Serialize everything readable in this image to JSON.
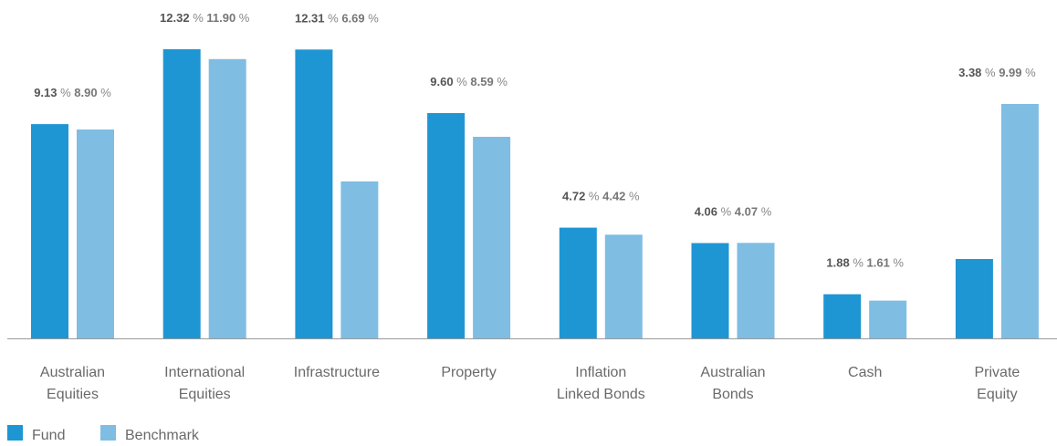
{
  "chart_data": {
    "type": "bar",
    "categories": [
      [
        "Australian",
        "Equities"
      ],
      [
        "International",
        "Equities"
      ],
      [
        "Infrastructure"
      ],
      [
        "Property"
      ],
      [
        "Inflation",
        "Linked Bonds"
      ],
      [
        "Australian",
        "Bonds"
      ],
      [
        "Cash"
      ],
      [
        "Private",
        "Equity"
      ]
    ],
    "series": [
      {
        "name": "Fund",
        "color": "#1e96d4",
        "values": [
          9.13,
          12.32,
          12.31,
          9.6,
          4.72,
          4.06,
          1.88,
          3.38
        ],
        "labels": [
          "9.13",
          "12.32",
          "12.31",
          "9.60",
          "4.72",
          "4.06",
          "1.88",
          "3.38"
        ]
      },
      {
        "name": "Benchmark",
        "color": "#7fbde3",
        "values": [
          8.9,
          11.9,
          6.69,
          8.59,
          4.42,
          4.07,
          1.61,
          9.99
        ],
        "labels": [
          "8.90",
          "11.90",
          "6.69",
          "8.59",
          "4.42",
          "4.07",
          "1.61",
          "9.99"
        ]
      }
    ],
    "unit": "%",
    "ylim": [
      0,
      12.32
    ],
    "legend_position": "bottom-left",
    "grid": false
  }
}
